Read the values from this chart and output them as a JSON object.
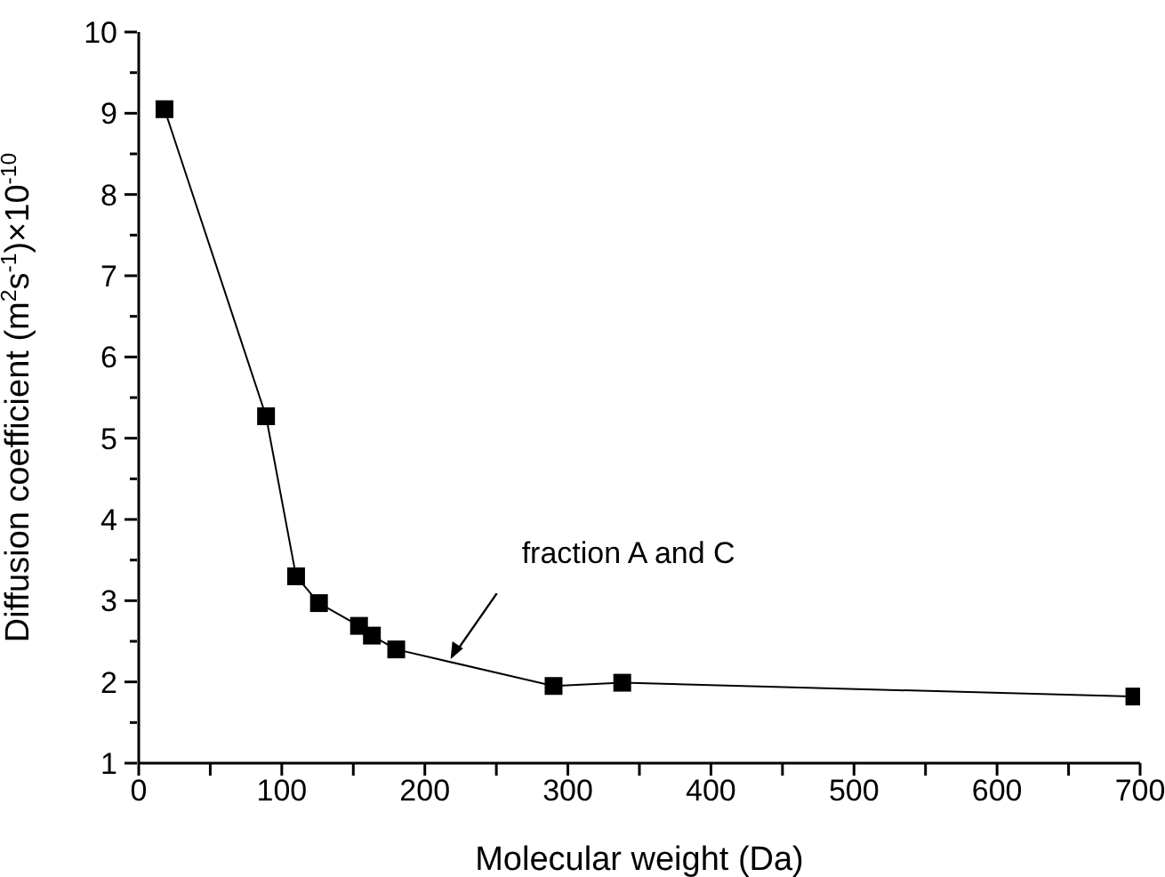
{
  "chart_data": {
    "type": "line",
    "xlabel": "Molecular weight (Da)",
    "ylabel": "Diffusion coefficient (m$^{2}$s$^{-1}$)×10$^{-10}$",
    "x": [
      18,
      89,
      110,
      126,
      154,
      163,
      180,
      290,
      338,
      696
    ],
    "series": [
      {
        "color": "#000000",
        "values": [
          9.05,
          5.27,
          3.3,
          2.97,
          2.69,
          2.57,
          2.4,
          1.95,
          1.99,
          1.82
        ]
      }
    ],
    "xlim": [
      0,
      700
    ],
    "xticks": [
      0,
      {
        "value": 50,
        "label": null
      },
      100,
      {
        "value": 150,
        "label": null
      },
      200,
      {
        "value": 250,
        "label": null
      },
      300,
      {
        "value": 350,
        "label": null
      },
      400,
      {
        "value": 450,
        "label": null
      },
      500,
      {
        "value": 550,
        "label": null
      },
      600,
      {
        "value": 650,
        "label": null
      },
      700
    ],
    "ylim": [
      1,
      10
    ],
    "yticks": [
      1,
      {
        "value": 1.5,
        "label": null
      },
      2,
      {
        "value": 2.5,
        "label": null
      },
      3,
      {
        "value": 3.5,
        "label": null
      },
      4,
      {
        "value": 4.5,
        "label": null
      },
      5,
      {
        "value": 5.5,
        "label": null
      },
      6,
      {
        "value": 6.5,
        "label": null
      },
      7,
      {
        "value": 7.5,
        "label": null
      },
      8,
      {
        "value": 8.5,
        "label": null
      },
      9,
      {
        "value": 9.5,
        "label": null
      },
      10
    ],
    "annotations": [
      {
        "text": "fraction A and C",
        "x": 218,
        "y": 2.28
      }
    ],
    "marker": "square",
    "line_style": "solid",
    "grid": false,
    "legend": false
  }
}
